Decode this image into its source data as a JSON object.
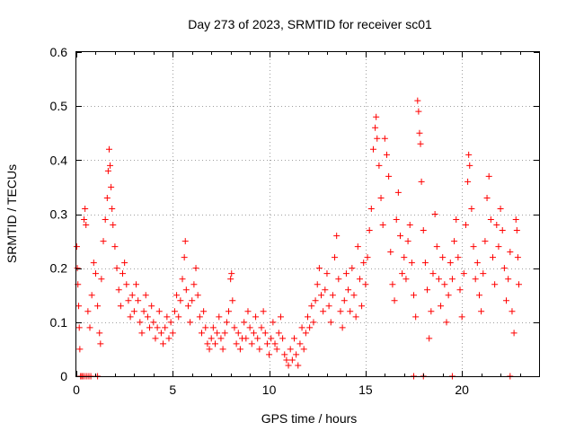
{
  "chart_data": {
    "type": "scatter",
    "title": "Day 273 of 2023, SRMTID for receiver sc01",
    "xlabel": "GPS time / hours",
    "ylabel": "SRMTID / TECUs",
    "xlim": [
      0,
      24
    ],
    "ylim": [
      0,
      0.6
    ],
    "x_ticks": [
      0,
      5,
      10,
      15,
      20
    ],
    "y_ticks": [
      0,
      0.1,
      0.2,
      0.3,
      0.4,
      0.5,
      0.6
    ],
    "x_tick_labels": [
      "0",
      "5",
      "10",
      "15",
      "20"
    ],
    "y_tick_labels": [
      "0",
      "0.1",
      "0.2",
      "0.3",
      "0.4",
      "0.5",
      "0.6"
    ],
    "grid": true,
    "marker": "+",
    "marker_color": "#ff0000",
    "series": [
      {
        "name": "SRMTID sc01",
        "points": [
          [
            0.02,
            0.24
          ],
          [
            0.05,
            0.2
          ],
          [
            0.08,
            0.17
          ],
          [
            0.12,
            0.13
          ],
          [
            0.15,
            0.09
          ],
          [
            0.18,
            0.05
          ],
          [
            0.22,
            0.0
          ],
          [
            0.28,
            0.0
          ],
          [
            0.35,
            0.0
          ],
          [
            0.45,
            0.0
          ],
          [
            0.55,
            0.0
          ],
          [
            0.65,
            0.0
          ],
          [
            0.75,
            0.0
          ],
          [
            1.1,
            0.0
          ],
          [
            0.4,
            0.29
          ],
          [
            0.45,
            0.31
          ],
          [
            0.5,
            0.28
          ],
          [
            0.6,
            0.12
          ],
          [
            0.7,
            0.09
          ],
          [
            0.8,
            0.15
          ],
          [
            0.9,
            0.21
          ],
          [
            1.0,
            0.19
          ],
          [
            1.1,
            0.13
          ],
          [
            1.2,
            0.08
          ],
          [
            1.25,
            0.06
          ],
          [
            1.3,
            0.18
          ],
          [
            1.4,
            0.25
          ],
          [
            1.5,
            0.29
          ],
          [
            1.6,
            0.33
          ],
          [
            1.65,
            0.38
          ],
          [
            1.7,
            0.42
          ],
          [
            1.75,
            0.39
          ],
          [
            1.8,
            0.35
          ],
          [
            1.85,
            0.31
          ],
          [
            1.9,
            0.28
          ],
          [
            2.0,
            0.24
          ],
          [
            2.1,
            0.2
          ],
          [
            2.2,
            0.16
          ],
          [
            2.3,
            0.13
          ],
          [
            2.4,
            0.19
          ],
          [
            2.5,
            0.21
          ],
          [
            2.6,
            0.17
          ],
          [
            2.7,
            0.14
          ],
          [
            2.8,
            0.11
          ],
          [
            2.9,
            0.15
          ],
          [
            3.0,
            0.12
          ],
          [
            3.1,
            0.17
          ],
          [
            3.2,
            0.14
          ],
          [
            3.3,
            0.1
          ],
          [
            3.4,
            0.08
          ],
          [
            3.5,
            0.12
          ],
          [
            3.6,
            0.15
          ],
          [
            3.7,
            0.11
          ],
          [
            3.8,
            0.09
          ],
          [
            3.9,
            0.13
          ],
          [
            4.0,
            0.1
          ],
          [
            4.1,
            0.07
          ],
          [
            4.2,
            0.09
          ],
          [
            4.3,
            0.12
          ],
          [
            4.4,
            0.08
          ],
          [
            4.5,
            0.06
          ],
          [
            4.6,
            0.09
          ],
          [
            4.7,
            0.11
          ],
          [
            4.8,
            0.07
          ],
          [
            4.9,
            0.1
          ],
          [
            5.0,
            0.08
          ],
          [
            5.1,
            0.12
          ],
          [
            5.2,
            0.15
          ],
          [
            5.3,
            0.11
          ],
          [
            5.4,
            0.14
          ],
          [
            5.5,
            0.18
          ],
          [
            5.6,
            0.22
          ],
          [
            5.65,
            0.25
          ],
          [
            5.7,
            0.16
          ],
          [
            5.8,
            0.13
          ],
          [
            5.9,
            0.1
          ],
          [
            6.0,
            0.14
          ],
          [
            6.1,
            0.17
          ],
          [
            6.2,
            0.2
          ],
          [
            6.3,
            0.15
          ],
          [
            6.4,
            0.11
          ],
          [
            6.5,
            0.08
          ],
          [
            6.6,
            0.12
          ],
          [
            6.7,
            0.09
          ],
          [
            6.8,
            0.06
          ],
          [
            6.9,
            0.05
          ],
          [
            7.0,
            0.07
          ],
          [
            7.1,
            0.09
          ],
          [
            7.2,
            0.06
          ],
          [
            7.3,
            0.08
          ],
          [
            7.4,
            0.11
          ],
          [
            7.5,
            0.07
          ],
          [
            7.6,
            0.05
          ],
          [
            7.7,
            0.08
          ],
          [
            7.8,
            0.1
          ],
          [
            7.9,
            0.12
          ],
          [
            8.0,
            0.18
          ],
          [
            8.05,
            0.19
          ],
          [
            8.1,
            0.14
          ],
          [
            8.2,
            0.09
          ],
          [
            8.3,
            0.06
          ],
          [
            8.4,
            0.08
          ],
          [
            8.5,
            0.05
          ],
          [
            8.6,
            0.07
          ],
          [
            8.7,
            0.1
          ],
          [
            8.8,
            0.07
          ],
          [
            8.9,
            0.12
          ],
          [
            9.0,
            0.09
          ],
          [
            9.1,
            0.06
          ],
          [
            9.2,
            0.08
          ],
          [
            9.3,
            0.11
          ],
          [
            9.4,
            0.07
          ],
          [
            9.5,
            0.05
          ],
          [
            9.6,
            0.09
          ],
          [
            9.7,
            0.12
          ],
          [
            9.8,
            0.08
          ],
          [
            9.9,
            0.06
          ],
          [
            10.0,
            0.04
          ],
          [
            10.1,
            0.07
          ],
          [
            10.2,
            0.1
          ],
          [
            10.3,
            0.06
          ],
          [
            10.4,
            0.05
          ],
          [
            10.5,
            0.08
          ],
          [
            10.6,
            0.11
          ],
          [
            10.7,
            0.07
          ],
          [
            10.8,
            0.04
          ],
          [
            10.9,
            0.03
          ],
          [
            11.0,
            0.02
          ],
          [
            11.1,
            0.05
          ],
          [
            11.2,
            0.03
          ],
          [
            11.3,
            0.07
          ],
          [
            11.4,
            0.04
          ],
          [
            11.5,
            0.02
          ],
          [
            11.6,
            0.06
          ],
          [
            11.7,
            0.09
          ],
          [
            11.8,
            0.05
          ],
          [
            11.9,
            0.08
          ],
          [
            12.0,
            0.11
          ],
          [
            12.1,
            0.09
          ],
          [
            12.2,
            0.13
          ],
          [
            12.3,
            0.1
          ],
          [
            12.4,
            0.14
          ],
          [
            12.5,
            0.17
          ],
          [
            12.6,
            0.2
          ],
          [
            12.7,
            0.15
          ],
          [
            12.8,
            0.12
          ],
          [
            12.9,
            0.16
          ],
          [
            13.0,
            0.19
          ],
          [
            13.1,
            0.13
          ],
          [
            13.2,
            0.1
          ],
          [
            13.3,
            0.15
          ],
          [
            13.4,
            0.22
          ],
          [
            13.5,
            0.26
          ],
          [
            13.6,
            0.18
          ],
          [
            13.7,
            0.12
          ],
          [
            13.8,
            0.09
          ],
          [
            13.9,
            0.14
          ],
          [
            14.0,
            0.19
          ],
          [
            14.1,
            0.16
          ],
          [
            14.2,
            0.12
          ],
          [
            14.3,
            0.2
          ],
          [
            14.4,
            0.15
          ],
          [
            14.5,
            0.11
          ],
          [
            14.6,
            0.24
          ],
          [
            14.7,
            0.18
          ],
          [
            14.8,
            0.13
          ],
          [
            14.9,
            0.21
          ],
          [
            15.0,
            0.17
          ],
          [
            15.1,
            0.22
          ],
          [
            15.2,
            0.27
          ],
          [
            15.3,
            0.31
          ],
          [
            15.4,
            0.42
          ],
          [
            15.5,
            0.46
          ],
          [
            15.55,
            0.48
          ],
          [
            15.6,
            0.44
          ],
          [
            15.7,
            0.39
          ],
          [
            15.8,
            0.33
          ],
          [
            15.9,
            0.28
          ],
          [
            16.0,
            0.44
          ],
          [
            16.1,
            0.41
          ],
          [
            16.2,
            0.37
          ],
          [
            16.3,
            0.23
          ],
          [
            16.4,
            0.17
          ],
          [
            16.5,
            0.14
          ],
          [
            16.6,
            0.29
          ],
          [
            16.7,
            0.34
          ],
          [
            16.8,
            0.26
          ],
          [
            16.9,
            0.19
          ],
          [
            17.0,
            0.22
          ],
          [
            17.1,
            0.18
          ],
          [
            17.2,
            0.25
          ],
          [
            17.3,
            0.28
          ],
          [
            17.4,
            0.21
          ],
          [
            17.5,
            0.15
          ],
          [
            17.6,
            0.11
          ],
          [
            17.7,
            0.51
          ],
          [
            17.75,
            0.49
          ],
          [
            17.8,
            0.45
          ],
          [
            17.85,
            0.43
          ],
          [
            17.9,
            0.36
          ],
          [
            18.0,
            0.27
          ],
          [
            18.1,
            0.21
          ],
          [
            18.2,
            0.16
          ],
          [
            18.3,
            0.07
          ],
          [
            18.4,
            0.12
          ],
          [
            18.5,
            0.19
          ],
          [
            18.6,
            0.3
          ],
          [
            18.7,
            0.24
          ],
          [
            18.8,
            0.18
          ],
          [
            18.9,
            0.13
          ],
          [
            19.0,
            0.22
          ],
          [
            19.1,
            0.17
          ],
          [
            19.2,
            0.1
          ],
          [
            19.3,
            0.15
          ],
          [
            19.4,
            0.21
          ],
          [
            19.5,
            0.18
          ],
          [
            19.6,
            0.25
          ],
          [
            19.7,
            0.29
          ],
          [
            19.8,
            0.22
          ],
          [
            19.9,
            0.16
          ],
          [
            20.0,
            0.11
          ],
          [
            20.1,
            0.19
          ],
          [
            20.2,
            0.28
          ],
          [
            20.3,
            0.36
          ],
          [
            20.35,
            0.41
          ],
          [
            20.4,
            0.39
          ],
          [
            20.5,
            0.31
          ],
          [
            20.6,
            0.24
          ],
          [
            20.7,
            0.18
          ],
          [
            20.8,
            0.21
          ],
          [
            20.9,
            0.15
          ],
          [
            21.0,
            0.12
          ],
          [
            21.1,
            0.19
          ],
          [
            21.2,
            0.25
          ],
          [
            21.3,
            0.33
          ],
          [
            21.4,
            0.37
          ],
          [
            21.5,
            0.29
          ],
          [
            21.6,
            0.22
          ],
          [
            21.7,
            0.17
          ],
          [
            21.8,
            0.28
          ],
          [
            21.9,
            0.24
          ],
          [
            22.0,
            0.31
          ],
          [
            22.1,
            0.27
          ],
          [
            22.2,
            0.2
          ],
          [
            22.3,
            0.14
          ],
          [
            22.4,
            0.18
          ],
          [
            22.5,
            0.23
          ],
          [
            22.6,
            0.12
          ],
          [
            22.7,
            0.08
          ],
          [
            22.8,
            0.29
          ],
          [
            22.85,
            0.27
          ],
          [
            22.9,
            0.22
          ],
          [
            22.95,
            0.17
          ],
          [
            17.5,
            0.0
          ],
          [
            18.0,
            0.0
          ],
          [
            19.5,
            0.0
          ],
          [
            22.5,
            0.0
          ]
        ]
      }
    ]
  }
}
